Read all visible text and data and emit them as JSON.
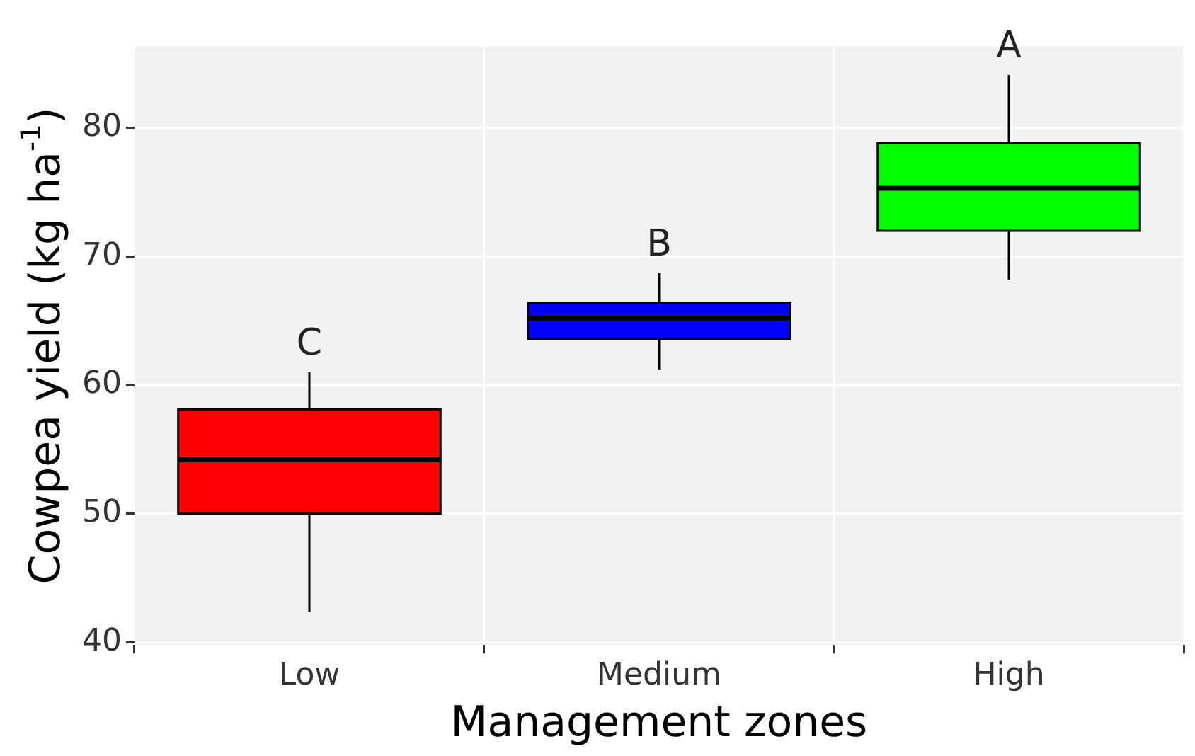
{
  "chart_data": {
    "type": "box",
    "xlabel": "Management zones",
    "ylabel": "Cowpea yield (kg ha$^{-1}$)",
    "categories": [
      "Low",
      "Medium",
      "High"
    ],
    "series": [
      {
        "colors": [
          "#ff0000",
          "#0000ff",
          "#00ff00"
        ],
        "boxes": [
          {
            "low": 42.4,
            "q1": 50,
            "median": 54.2,
            "q3": 58.1,
            "high": 61
          },
          {
            "low": 61.2,
            "q1": 63.6,
            "median": 65.2,
            "q3": 66.4,
            "high": 68.7
          },
          {
            "low": 68.2,
            "q1": 72,
            "median": 75.3,
            "q3": 78.8,
            "high": 84.1
          }
        ]
      }
    ],
    "ylim": [
      39.8,
      86.3
    ],
    "yticks": [
      40,
      50,
      60,
      70,
      80
    ],
    "grid": true,
    "legend": false,
    "annotations": [
      {
        "text": "C",
        "x": "Low",
        "y": 61
      },
      {
        "text": "B",
        "x": "Medium",
        "y": 68.7
      },
      {
        "text": "A",
        "x": "High",
        "y": 84.1
      }
    ]
  }
}
